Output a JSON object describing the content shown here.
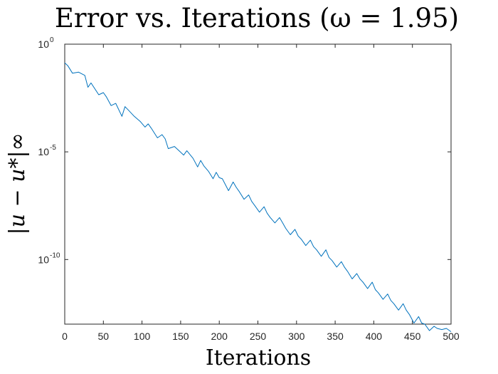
{
  "chart_data": {
    "type": "line",
    "title": "Error vs. Iterations (ω = 1.95)",
    "xlabel": "Iterations",
    "ylabel": "|u − u*|∞",
    "xlim": [
      0,
      500
    ],
    "ylim_log10": [
      -13,
      0
    ],
    "yscale": "log",
    "grid": false,
    "xticks": [
      0,
      50,
      100,
      150,
      200,
      250,
      300,
      350,
      400,
      450,
      500
    ],
    "xtick_labels": [
      "0",
      "50",
      "100",
      "150",
      "200",
      "250",
      "300",
      "350",
      "400",
      "450",
      "500"
    ],
    "yticks": [
      {
        "base": "10",
        "exp": "0",
        "log10": 0
      },
      {
        "base": "10",
        "exp": "-5",
        "log10": -5
      },
      {
        "base": "10",
        "exp": "-10",
        "log10": -10
      }
    ],
    "series": [
      {
        "color": "#0072BD",
        "x": [
          0,
          4,
          10,
          18,
          26,
          30,
          34,
          44,
          50,
          54,
          60,
          66,
          74,
          78,
          82,
          90,
          98,
          104,
          108,
          112,
          120,
          126,
          130,
          134,
          142,
          148,
          154,
          158,
          166,
          172,
          176,
          180,
          186,
          192,
          196,
          200,
          204,
          212,
          218,
          222,
          226,
          232,
          238,
          242,
          246,
          252,
          258,
          262,
          266,
          272,
          278,
          282,
          286,
          292,
          298,
          302,
          306,
          312,
          318,
          322,
          326,
          332,
          338,
          342,
          346,
          352,
          358,
          362,
          366,
          372,
          378,
          382,
          386,
          392,
          398,
          402,
          406,
          412,
          418,
          422,
          426,
          432,
          438,
          442,
          446,
          452,
          458,
          462,
          466,
          472,
          478,
          482,
          488,
          494,
          500
        ],
        "y": [
          -0.87,
          -1.0,
          -1.35,
          -1.3,
          -1.45,
          -2.0,
          -1.8,
          -2.35,
          -2.25,
          -2.45,
          -2.85,
          -2.75,
          -3.35,
          -2.9,
          -3.05,
          -3.35,
          -3.6,
          -3.85,
          -3.7,
          -3.9,
          -4.35,
          -4.2,
          -4.4,
          -4.85,
          -4.75,
          -4.95,
          -5.15,
          -4.95,
          -5.3,
          -5.7,
          -5.4,
          -5.65,
          -5.9,
          -6.25,
          -5.95,
          -6.2,
          -6.25,
          -6.8,
          -6.4,
          -6.65,
          -6.85,
          -7.2,
          -7.0,
          -7.3,
          -7.5,
          -7.8,
          -7.55,
          -7.85,
          -8.05,
          -8.3,
          -8.05,
          -8.3,
          -8.55,
          -8.85,
          -8.6,
          -8.9,
          -9.05,
          -9.35,
          -9.1,
          -9.4,
          -9.55,
          -9.85,
          -9.55,
          -9.9,
          -10.05,
          -10.35,
          -10.1,
          -10.35,
          -10.55,
          -10.9,
          -10.65,
          -10.9,
          -11.05,
          -11.35,
          -11.05,
          -11.4,
          -11.55,
          -11.85,
          -11.6,
          -11.9,
          -12.05,
          -12.35,
          -12.05,
          -12.35,
          -12.55,
          -12.95,
          -12.65,
          -12.95,
          -13.0,
          -13.3,
          -13.1,
          -13.2,
          -13.25,
          -13.2,
          -13.35
        ]
      }
    ]
  }
}
